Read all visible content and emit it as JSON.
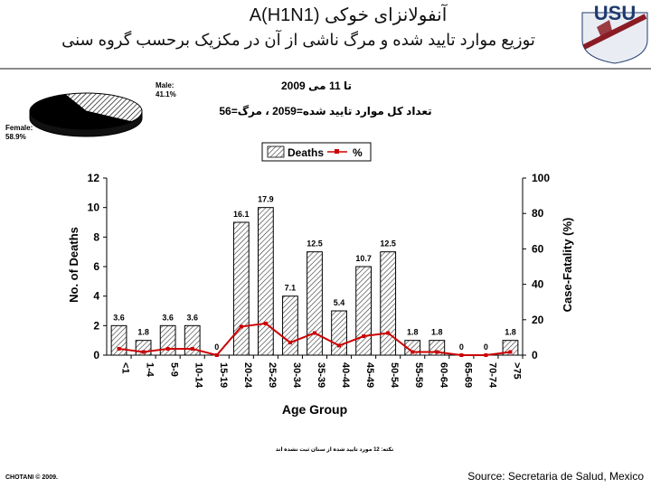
{
  "slide": {
    "title_line1": "آنفولانزای خوکی A(H1N1)",
    "title_line2": "توزیع موارد تایید شده و مرگ ناشی از آن در مکزیک برحسب گروه سنی",
    "date_line": "تا 11 می 2009",
    "totals_line": "تعداد کل موارد تایید شده=2059 ، مرگ=56",
    "footnote": "نکته: 12 مورد تایید شده از سنان ثبت نشده اند",
    "copyright": "CHOTANI © 2009.",
    "source": "Source: Secretaria de Salud, Mexico"
  },
  "logo": {
    "text": "USU",
    "icon": "usu-logo",
    "colors": {
      "primary": "#1f3a6e",
      "accent": "#8b1c24"
    }
  },
  "chart_data": [
    {
      "type": "pie",
      "labels": [
        "Male:",
        "Female:"
      ],
      "values": [
        41.1,
        58.9
      ],
      "value_labels": [
        "41.1%",
        "58.9%"
      ],
      "fills": [
        "hatched",
        "#000000"
      ]
    },
    {
      "type": "bar",
      "categories": [
        "<1",
        "1-4",
        "5-9",
        "10-14",
        "15-19",
        "20-24",
        "25-29",
        "30-34",
        "35-39",
        "40-44",
        "45-49",
        "50-54",
        "55-59",
        "60-64",
        "65-69",
        "70-74",
        ">75"
      ],
      "series": [
        {
          "name": "Deaths",
          "type": "bar",
          "axis": "left",
          "values": [
            2,
            1,
            2,
            2,
            0,
            9,
            10,
            4,
            7,
            3,
            6,
            7,
            1,
            1,
            0,
            0,
            1
          ]
        },
        {
          "name": "%",
          "type": "line",
          "axis": "right",
          "color": "#cc0000",
          "values": [
            3.6,
            1.8,
            3.6,
            3.6,
            0,
            16.1,
            17.9,
            7.1,
            12.5,
            5.4,
            10.7,
            12.5,
            1.8,
            1.8,
            0,
            0,
            1.8
          ]
        }
      ],
      "data_labels": [
        "3.6",
        "1.8",
        "3.6",
        "3.6",
        "0",
        "16.1",
        "17.9",
        "7.1",
        "12.5",
        "5.4",
        "10.7",
        "12.5",
        "1.8",
        "1.8",
        "0",
        "0",
        "1.8"
      ],
      "xlabel": "Age Group",
      "ylabel": "No. of Deaths",
      "ylabel_right": "Case-Fatality (%)",
      "ylim": [
        0,
        12
      ],
      "yticks": [
        0,
        2,
        4,
        6,
        8,
        10,
        12
      ],
      "ylim_right": [
        0,
        100
      ],
      "yticks_right": [
        0,
        20,
        40,
        60,
        80,
        100
      ],
      "legend": {
        "placement": "top-center",
        "entries": [
          "Deaths",
          "%"
        ]
      },
      "grid": false
    }
  ]
}
